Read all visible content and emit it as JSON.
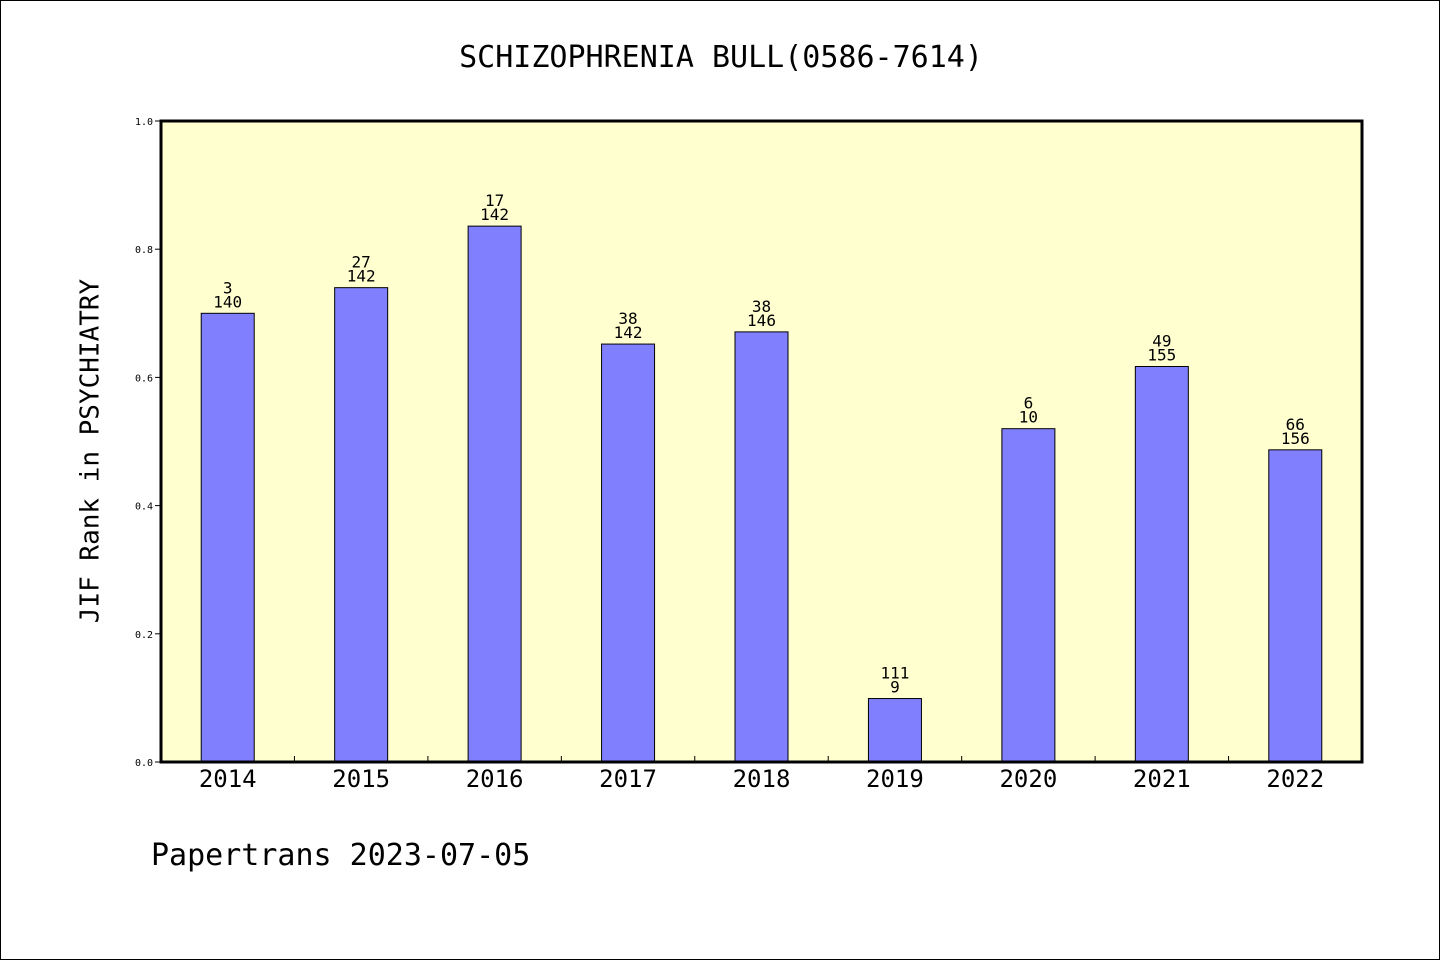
{
  "footer": "Papertrans 2023-07-05",
  "chart_data": {
    "type": "bar",
    "title": "SCHIZOPHRENIA BULL(0586-7614)",
    "xlabel": "",
    "ylabel": "JIF Rank in PSYCHIATRY",
    "ylim": [
      0,
      1.0
    ],
    "yticks": [
      "0.0",
      "0.2",
      "0.4",
      "0.6",
      "0.8",
      "1.0"
    ],
    "categories": [
      "2014",
      "2015",
      "2016",
      "2017",
      "2018",
      "2019",
      "2020",
      "2021",
      "2022"
    ],
    "values": [
      0.7,
      0.74,
      0.836,
      0.652,
      0.671,
      0.099,
      0.52,
      0.617,
      0.487
    ],
    "labels_top": [
      "3",
      "27",
      "17",
      "38",
      "38",
      "111",
      "6",
      "49",
      "66"
    ],
    "labels_bottom": [
      "140",
      "142",
      "142",
      "142",
      "146",
      "9",
      "10",
      "155",
      "156"
    ],
    "grid": false,
    "colors": {
      "plot_background": "#ffffd0",
      "bar_fill": "#8080ff",
      "bar_stroke": "#000000"
    }
  }
}
